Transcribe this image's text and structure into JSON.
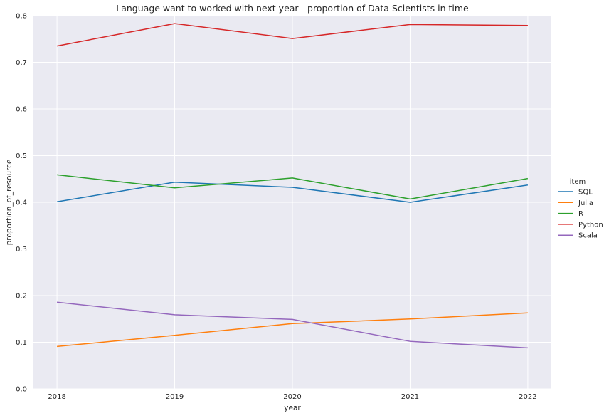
{
  "chart_data": {
    "type": "line",
    "title": "Language want to worked with next year - proportion of Data Scientists in time",
    "xlabel": "year",
    "ylabel": "proportion_of_resource",
    "x": [
      2018,
      2019,
      2020,
      2021,
      2022
    ],
    "x_tick_labels": [
      "2018",
      "2019",
      "2020",
      "2021",
      "2022"
    ],
    "ylim": [
      0,
      0.8
    ],
    "y_ticks": [
      0,
      0.1,
      0.2,
      0.3,
      0.4,
      0.5,
      0.6,
      0.7,
      0.8
    ],
    "y_tick_labels": [
      "0.0",
      "0.1",
      "0.2",
      "0.3",
      "0.4",
      "0.5",
      "0.6",
      "0.7",
      "0.8"
    ],
    "grid": true,
    "legend_title": "item",
    "legend_position": "right",
    "series": [
      {
        "name": "SQL",
        "color": "#1f77b4",
        "values": [
          0.401,
          0.443,
          0.432,
          0.4,
          0.437
        ]
      },
      {
        "name": "Julia",
        "color": "#ff7f0e",
        "values": [
          0.091,
          0.115,
          0.14,
          0.15,
          0.163
        ]
      },
      {
        "name": "R",
        "color": "#2ca02c",
        "values": [
          0.459,
          0.431,
          0.452,
          0.407,
          0.451
        ]
      },
      {
        "name": "Python",
        "color": "#d62728",
        "values": [
          0.735,
          0.783,
          0.751,
          0.781,
          0.779
        ]
      },
      {
        "name": "Scala",
        "color": "#9467bd",
        "values": [
          0.186,
          0.159,
          0.149,
          0.102,
          0.088
        ]
      }
    ]
  },
  "colors": {
    "plot_background": "#eaeaf2",
    "grid": "#ffffff",
    "text": "#262626"
  }
}
